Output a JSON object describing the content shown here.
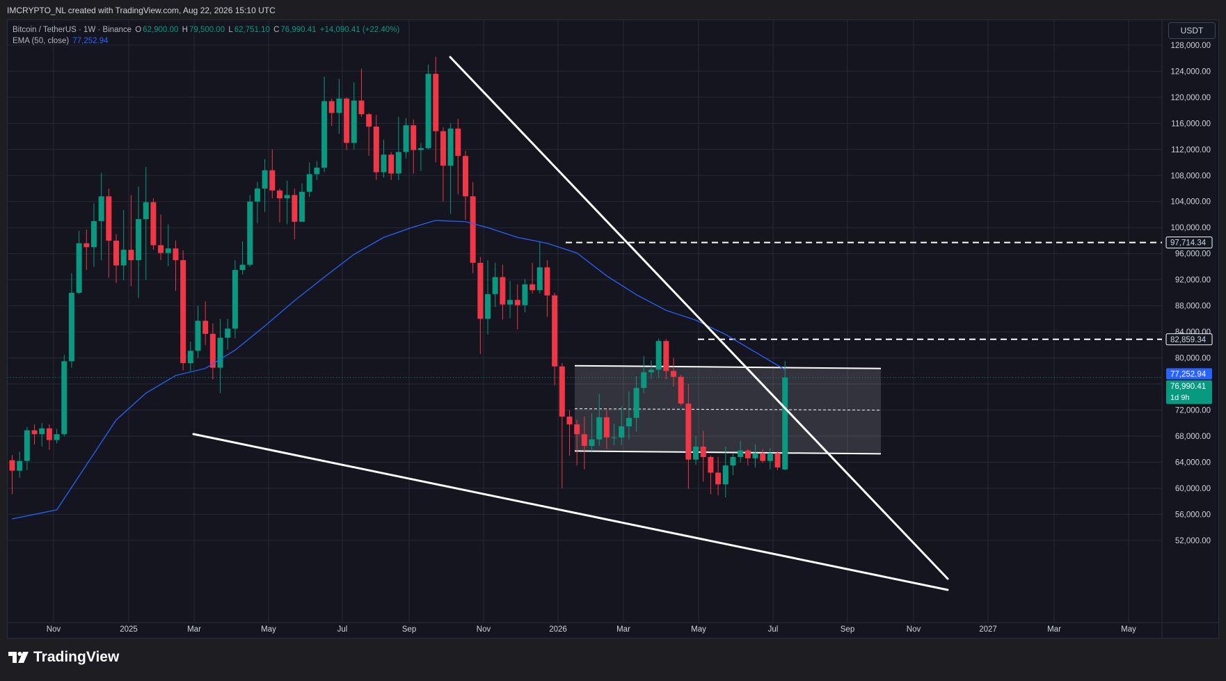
{
  "header": {
    "attribution": "IMCRYPTO_NL created with TradingView.com, Aug 22, 2026 15:10 UTC"
  },
  "legend": {
    "symbol": "Bitcoin / TetherUS · 1W · Binance",
    "o_label": "O",
    "o_value": "62,900.00",
    "h_label": "H",
    "h_value": "79,500.00",
    "l_label": "L",
    "l_value": "62,751.10",
    "c_label": "C",
    "c_value": "76,990.41",
    "change": "+14,090.41 (+22.40%)",
    "ema_label": "EMA (50, close)",
    "ema_value": "77,252.94"
  },
  "currency_button": "USDT",
  "footer": {
    "logo_text": "TradingView"
  },
  "colors": {
    "up": "#089981",
    "down": "#f23645",
    "ema": "#2962ff",
    "background": "#14151f",
    "grid": "#262a35",
    "trendline": "#ffffff"
  },
  "chart_data": {
    "type": "candlestick",
    "title": "Bitcoin / TetherUS · 1W · Binance",
    "xlabel": "",
    "ylabel": "",
    "ylim": [
      50000,
      130000
    ],
    "y_ticks": [
      "52,000.00",
      "56,000.00",
      "60,000.00",
      "64,000.00",
      "68,000.00",
      "72,000.00",
      "76,000.00",
      "80,000.00",
      "84,000.00",
      "88,000.00",
      "92,000.00",
      "96,000.00",
      "100,000.00",
      "104,000.00",
      "108,000.00",
      "112,000.00",
      "116,000.00",
      "120,000.00",
      "124,000.00",
      "128,000.00"
    ],
    "x_ticks": [
      "Nov",
      "2025",
      "Mar",
      "May",
      "Jul",
      "Sep",
      "Nov",
      "2026",
      "Mar",
      "May",
      "Jul",
      "Sep",
      "Nov",
      "2027",
      "Mar",
      "May"
    ],
    "grid": true,
    "candles": [
      [
        64300,
        62700,
        65100,
        59100
      ],
      [
        62700,
        64200,
        65600,
        61600
      ],
      [
        64200,
        68900,
        69400,
        62800
      ],
      [
        68900,
        68300,
        69800,
        66700
      ],
      [
        68300,
        69200,
        70000,
        66400
      ],
      [
        69200,
        67400,
        69800,
        65900
      ],
      [
        67400,
        68300,
        69100,
        66900
      ],
      [
        68300,
        79500,
        80500,
        68000
      ],
      [
        79500,
        90000,
        93000,
        78500
      ],
      [
        90000,
        97600,
        99500,
        89800
      ],
      [
        97600,
        97000,
        99700,
        93500
      ],
      [
        97000,
        101000,
        103700,
        94000
      ],
      [
        101000,
        104800,
        108400,
        95000
      ],
      [
        104800,
        98000,
        106000,
        92300
      ],
      [
        98000,
        94200,
        99000,
        91500
      ],
      [
        94200,
        96600,
        102700,
        91900
      ],
      [
        96600,
        95000,
        105000,
        91000
      ],
      [
        95000,
        101300,
        106300,
        89200
      ],
      [
        101300,
        103900,
        109300,
        92000
      ],
      [
        103900,
        97300,
        104500,
        96600
      ],
      [
        97300,
        96100,
        102000,
        95000
      ],
      [
        96100,
        96800,
        100500,
        94100
      ],
      [
        96800,
        95000,
        98000,
        90300
      ],
      [
        95000,
        79200,
        96500,
        78100
      ],
      [
        79200,
        81100,
        82500,
        78000
      ],
      [
        81100,
        85700,
        88000,
        80000
      ],
      [
        85700,
        83700,
        88700,
        82000
      ],
      [
        83700,
        78500,
        85300,
        76700
      ],
      [
        78500,
        83100,
        86000,
        74600
      ],
      [
        83100,
        84500,
        86000,
        81300
      ],
      [
        84500,
        93500,
        95000,
        83000
      ],
      [
        93500,
        94300,
        97900,
        92800
      ],
      [
        94300,
        104000,
        105000,
        94000
      ],
      [
        104000,
        106000,
        107000,
        100700
      ],
      [
        106000,
        108800,
        110500,
        102400
      ],
      [
        108800,
        105700,
        112000,
        104500
      ],
      [
        105700,
        104500,
        106000,
        100800
      ],
      [
        104500,
        105000,
        107200,
        100500
      ],
      [
        105000,
        100900,
        106000,
        98200
      ],
      [
        100900,
        105500,
        106800,
        101300
      ],
      [
        105500,
        108200,
        110000,
        104700
      ],
      [
        108200,
        109200,
        110200,
        107300
      ],
      [
        109200,
        119400,
        123200,
        108500
      ],
      [
        119400,
        117600,
        119800,
        115600
      ],
      [
        117600,
        119800,
        122800,
        114400
      ],
      [
        119800,
        113000,
        120000,
        111900
      ],
      [
        113000,
        119500,
        122300,
        112000
      ],
      [
        119500,
        117400,
        124400,
        117000
      ],
      [
        117400,
        115500,
        117600,
        111000
      ],
      [
        115500,
        108500,
        117300,
        107300
      ],
      [
        108500,
        111200,
        113500,
        107700
      ],
      [
        111200,
        108300,
        111600,
        107300
      ],
      [
        108300,
        111600,
        117000,
        107300
      ],
      [
        111600,
        115700,
        116800,
        110600
      ],
      [
        115700,
        111900,
        116600,
        108300
      ],
      [
        111900,
        112200,
        113000,
        108700
      ],
      [
        112200,
        123600,
        125000,
        112000
      ],
      [
        123600,
        114800,
        126200,
        110000
      ],
      [
        114800,
        109500,
        115400,
        104000
      ],
      [
        109500,
        115200,
        116000,
        102100
      ],
      [
        115200,
        111000,
        116700,
        105100
      ],
      [
        111000,
        104800,
        111800,
        101200
      ],
      [
        104800,
        94600,
        107000,
        93000
      ],
      [
        94600,
        86000,
        95500,
        80600
      ],
      [
        86000,
        89800,
        95000,
        83600
      ],
      [
        89800,
        92400,
        94600,
        87800
      ],
      [
        92400,
        88200,
        94300,
        85900
      ],
      [
        88200,
        88900,
        91800,
        86100
      ],
      [
        88900,
        88100,
        91300,
        84400
      ],
      [
        88100,
        91300,
        92100,
        87000
      ],
      [
        91300,
        90400,
        94600,
        89900
      ],
      [
        90400,
        93900,
        97900,
        89900
      ],
      [
        93900,
        89600,
        95000,
        86300
      ],
      [
        89600,
        78700,
        90000,
        75800
      ],
      [
        78700,
        71000,
        79200,
        60000
      ],
      [
        71000,
        69800,
        72000,
        65000
      ],
      [
        69800,
        68300,
        70500,
        63500
      ],
      [
        68300,
        66500,
        71000,
        62900
      ],
      [
        66500,
        67500,
        71500,
        65700
      ],
      [
        67500,
        70900,
        74500,
        66500
      ],
      [
        70900,
        67800,
        72000,
        66000
      ],
      [
        67800,
        67800,
        69900,
        66600
      ],
      [
        67800,
        69500,
        72600,
        66600
      ],
      [
        69500,
        70800,
        74900,
        67500
      ],
      [
        70800,
        75400,
        77200,
        68700
      ],
      [
        75400,
        77800,
        80300,
        74600
      ],
      [
        77800,
        78200,
        79600,
        76800
      ],
      [
        78200,
        82600,
        83000,
        77000
      ],
      [
        82600,
        78000,
        82900,
        76700
      ],
      [
        78000,
        77100,
        80000,
        75600
      ],
      [
        77100,
        73000,
        77400,
        72700
      ],
      [
        73000,
        64400,
        76000,
        59900
      ],
      [
        64400,
        66400,
        68000,
        63600
      ],
      [
        66400,
        64800,
        68800,
        61000
      ],
      [
        64800,
        62400,
        65000,
        59100
      ],
      [
        62400,
        60600,
        64800,
        58900
      ],
      [
        60600,
        63500,
        66400,
        58600
      ],
      [
        63500,
        64800,
        65300,
        62000
      ],
      [
        64800,
        65800,
        67300,
        64000
      ],
      [
        65800,
        64600,
        66000,
        63500
      ],
      [
        64600,
        65400,
        66700,
        63200
      ],
      [
        65400,
        64200,
        66000,
        63900
      ],
      [
        64200,
        65400,
        66200,
        62900
      ],
      [
        65400,
        63200,
        65700,
        62800
      ],
      [
        62900,
        76990,
        79500,
        62751
      ]
    ],
    "ema_50": [
      [
        0,
        55300
      ],
      [
        6,
        56700
      ],
      [
        10,
        63600
      ],
      [
        14,
        70500
      ],
      [
        18,
        74600
      ],
      [
        22,
        77300
      ],
      [
        26,
        78400
      ],
      [
        30,
        81200
      ],
      [
        34,
        84900
      ],
      [
        38,
        88800
      ],
      [
        42,
        92400
      ],
      [
        46,
        95900
      ],
      [
        50,
        98500
      ],
      [
        54,
        100100
      ],
      [
        57,
        101100
      ],
      [
        61,
        100900
      ],
      [
        64,
        100000
      ],
      [
        68,
        98500
      ],
      [
        72,
        97600
      ],
      [
        76,
        96100
      ],
      [
        80,
        92600
      ],
      [
        84,
        89700
      ],
      [
        88,
        87300
      ],
      [
        92,
        85800
      ],
      [
        96,
        83600
      ],
      [
        100,
        80900
      ],
      [
        104,
        78200
      ]
    ],
    "price_lines": [
      {
        "label": "97,714.34",
        "value": 97714.34
      },
      {
        "label": "82,859.34",
        "value": 82859.34
      },
      {
        "label": "77,252.94",
        "value": 77252.94,
        "kind": "ema"
      },
      {
        "label": "76,990.41",
        "value": 76990.41,
        "kind": "last",
        "countdown": "1d 9h"
      }
    ],
    "range_box": {
      "top": 78600,
      "bottom": 65500,
      "mid": 72100
    },
    "trendlines": [
      {
        "from": [
          "2025-10-06",
          127000
        ],
        "to": [
          "2026-11-23",
          55200
        ]
      },
      {
        "from": [
          "2025-03-03",
          75000
        ],
        "to": [
          "2026-11-23",
          53800
        ]
      }
    ]
  }
}
